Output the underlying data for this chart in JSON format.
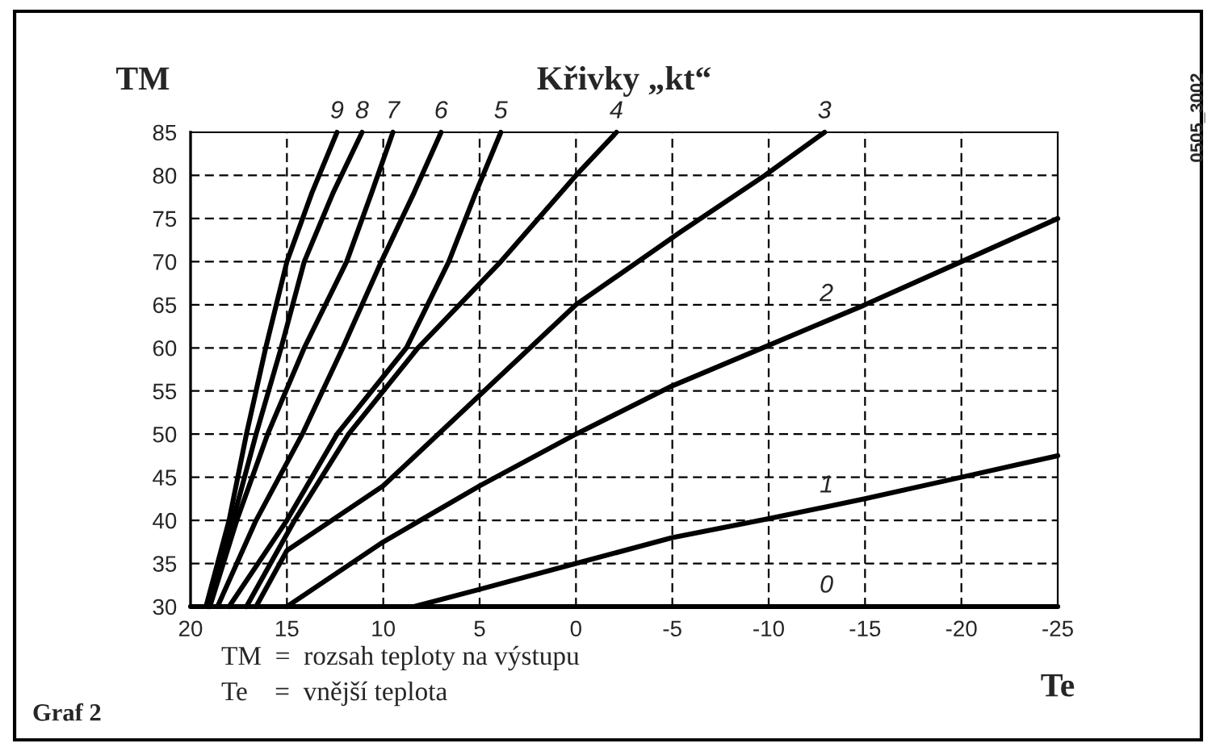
{
  "chart_data": {
    "type": "line",
    "title": "Křivky „kt“",
    "xlabel": "Te",
    "ylabel": "TM",
    "xlim": [
      20,
      -25
    ],
    "ylim": [
      30,
      85
    ],
    "xticks": [
      20,
      15,
      10,
      5,
      0,
      -5,
      -10,
      -15,
      -20,
      -25
    ],
    "yticks": [
      30,
      35,
      40,
      45,
      50,
      55,
      60,
      65,
      70,
      75,
      80,
      85
    ],
    "grid": true,
    "line_style": "solid",
    "marker": "none",
    "series": [
      {
        "color": "#000000",
        "x": [
          20,
          -25
        ],
        "values": [
          30,
          30
        ]
      },
      {
        "color": "#000000",
        "x": [
          8.4,
          5,
          0,
          -5,
          -10,
          -15,
          -20,
          -25
        ],
        "values": [
          30,
          32,
          35,
          38,
          40.2,
          42.5,
          45,
          47.5
        ]
      },
      {
        "color": "#000000",
        "x": [
          15,
          10,
          5,
          0,
          -5,
          -10,
          -15,
          -20,
          -25
        ],
        "values": [
          30,
          37.5,
          44,
          50,
          55.6,
          60.3,
          65,
          70,
          75
        ]
      },
      {
        "color": "#000000",
        "x": [
          16.6,
          15,
          10,
          5,
          0,
          -5.4,
          -9.8,
          -12.9
        ],
        "values": [
          30,
          36.5,
          44,
          54.5,
          65,
          73.4,
          80,
          85
        ]
      },
      {
        "color": "#000000",
        "x": [
          17.1,
          14.6,
          11.8,
          8.2,
          3.9,
          0,
          -2.1
        ],
        "values": [
          30,
          40,
          50,
          60,
          70,
          80,
          85
        ]
      },
      {
        "color": "#000000",
        "x": [
          18.0,
          15.0,
          12.4,
          8.8,
          6.6,
          5.2,
          3.9
        ],
        "values": [
          30,
          40,
          50,
          60,
          70,
          78,
          85
        ]
      },
      {
        "color": "#000000",
        "x": [
          18.6,
          16.6,
          14.2,
          12.1,
          10.1,
          8.4,
          7.0
        ],
        "values": [
          30,
          40,
          50,
          60,
          70,
          78,
          85
        ]
      },
      {
        "color": "#000000",
        "x": [
          19.0,
          17.6,
          16.0,
          14.1,
          11.9,
          10.6,
          9.5
        ],
        "values": [
          30,
          40,
          50,
          60,
          70,
          78,
          85
        ]
      },
      {
        "color": "#000000",
        "x": [
          19.1,
          17.8,
          16.6,
          15.3,
          14.1,
          12.6,
          11.1
        ],
        "values": [
          30,
          40,
          50,
          60,
          70,
          78,
          85
        ]
      },
      {
        "color": "#000000",
        "x": [
          19.2,
          18.0,
          17.1,
          16.1,
          15.0,
          13.7,
          12.4
        ],
        "values": [
          30,
          40,
          50,
          60,
          70,
          78,
          85
        ]
      }
    ],
    "annotations": [
      {
        "text": "0",
        "x": -13,
        "y": 30
      },
      {
        "text": "1",
        "x": -13,
        "y": 41.6
      },
      {
        "text": "2",
        "x": -13,
        "y": 63.8
      },
      {
        "text": "3",
        "x": -12.9,
        "y": 85
      },
      {
        "text": "4",
        "x": -2.1,
        "y": 85
      },
      {
        "text": "5",
        "x": 3.9,
        "y": 85
      },
      {
        "text": "6",
        "x": 7.0,
        "y": 85
      },
      {
        "text": "7",
        "x": 9.5,
        "y": 85
      },
      {
        "text": "8",
        "x": 11.1,
        "y": 85
      },
      {
        "text": "9",
        "x": 12.4,
        "y": 85
      },
      "TM  =  rozsah teploty na výstupu",
      "Te    =  vnější teplota",
      "Graf 2",
      "0505_3002"
    ]
  }
}
